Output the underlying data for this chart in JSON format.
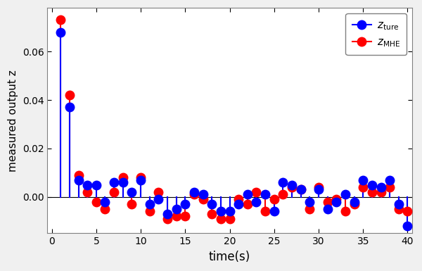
{
  "title": "",
  "xlabel": "time(s)",
  "ylabel": "measured output z",
  "xlim": [
    -0.5,
    40.5
  ],
  "ylim": [
    -0.015,
    0.078
  ],
  "yticks": [
    0.0,
    0.02,
    0.04,
    0.06
  ],
  "xticks": [
    0,
    5,
    10,
    15,
    20,
    25,
    30,
    35,
    40
  ],
  "blue_color": "#0000FF",
  "red_color": "#FF0000",
  "t_true": [
    1,
    2,
    3,
    4,
    5,
    6,
    7,
    8,
    9,
    10,
    11,
    12,
    13,
    14,
    15,
    16,
    17,
    18,
    19,
    20,
    21,
    22,
    23,
    24,
    25,
    26,
    27,
    28,
    29,
    30,
    31,
    32,
    33,
    34,
    35,
    36,
    37,
    38,
    39,
    40
  ],
  "z_true": [
    0.068,
    0.037,
    0.007,
    0.005,
    0.005,
    -0.002,
    0.006,
    0.006,
    0.002,
    0.007,
    -0.003,
    -0.001,
    -0.007,
    -0.005,
    -0.003,
    0.002,
    0.001,
    -0.003,
    -0.006,
    -0.006,
    -0.003,
    0.001,
    -0.002,
    0.001,
    -0.006,
    0.006,
    0.005,
    0.003,
    -0.002,
    0.003,
    -0.005,
    -0.002,
    0.001,
    -0.002,
    0.007,
    0.005,
    0.004,
    0.007,
    -0.003,
    -0.012
  ],
  "t_mhe": [
    1,
    2,
    3,
    4,
    5,
    6,
    7,
    8,
    9,
    10,
    11,
    12,
    13,
    14,
    15,
    16,
    17,
    18,
    19,
    20,
    21,
    22,
    23,
    24,
    25,
    26,
    27,
    28,
    29,
    30,
    31,
    32,
    33,
    34,
    35,
    36,
    37,
    38,
    39,
    40
  ],
  "z_mhe": [
    0.073,
    0.042,
    0.009,
    0.002,
    -0.002,
    -0.005,
    0.002,
    0.008,
    -0.003,
    0.008,
    -0.006,
    0.002,
    -0.009,
    -0.008,
    -0.008,
    0.001,
    -0.001,
    -0.007,
    -0.009,
    -0.009,
    -0.001,
    -0.003,
    0.002,
    -0.006,
    -0.001,
    0.001,
    0.004,
    0.003,
    -0.005,
    0.004,
    -0.002,
    -0.001,
    -0.006,
    -0.003,
    0.004,
    0.002,
    0.002,
    0.004,
    -0.005,
    -0.006
  ],
  "markersize": 9,
  "linewidth": 1.5,
  "bg_color": "#f0f0f0",
  "axes_bg": "#ffffff"
}
